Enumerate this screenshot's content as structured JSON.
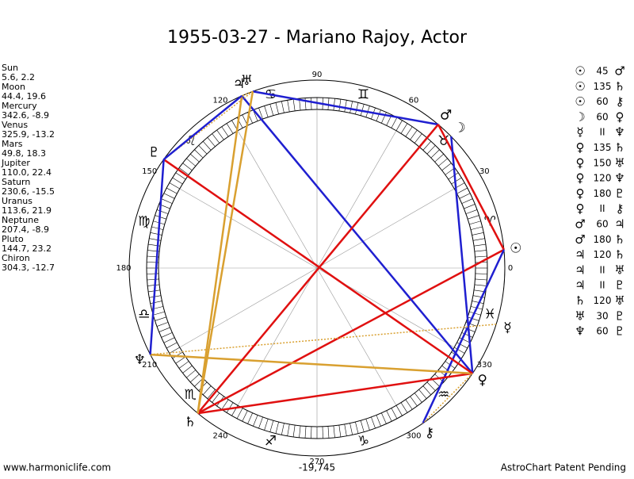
{
  "title": "1955-03-27 - Mariano Rajoy, Actor",
  "planets": [
    {
      "name": "Sun",
      "glyph": "☉",
      "lon": 5.6,
      "label": "5.6, 2.2"
    },
    {
      "name": "Moon",
      "glyph": "☽",
      "lon": 44.4,
      "label": "44.4, 19.6"
    },
    {
      "name": "Mercury",
      "glyph": "☿",
      "lon": 342.6,
      "label": "342.6, -8.9"
    },
    {
      "name": "Venus",
      "glyph": "♀",
      "lon": 325.9,
      "label": "325.9, -13.2"
    },
    {
      "name": "Mars",
      "glyph": "♂",
      "lon": 49.8,
      "label": "49.8, 18.3"
    },
    {
      "name": "Jupiter",
      "glyph": "♃",
      "lon": 110.0,
      "label": "110.0, 22.4"
    },
    {
      "name": "Saturn",
      "glyph": "♄",
      "lon": 230.6,
      "label": "230.6, -15.5"
    },
    {
      "name": "Uranus",
      "glyph": "♅",
      "lon": 113.6,
      "label": "113.6, 21.9"
    },
    {
      "name": "Neptune",
      "glyph": "♆",
      "lon": 207.4,
      "label": "207.4, -8.9"
    },
    {
      "name": "Pluto",
      "glyph": "♇",
      "lon": 144.7,
      "label": "144.7, 23.2"
    },
    {
      "name": "Chiron",
      "glyph": "⚷",
      "lon": 304.3,
      "label": "304.3, -12.7"
    }
  ],
  "aspects": [
    {
      "from": 0,
      "aspect": 45,
      "to": 4
    },
    {
      "from": 0,
      "aspect": 135,
      "to": 6
    },
    {
      "from": 0,
      "aspect": 60,
      "to": 10
    },
    {
      "from": 1,
      "aspect": 60,
      "to": 3
    },
    {
      "from": 2,
      "aspect": "II",
      "to": 8
    },
    {
      "from": 3,
      "aspect": 135,
      "to": 6
    },
    {
      "from": 3,
      "aspect": 150,
      "to": 7
    },
    {
      "from": 3,
      "aspect": 120,
      "to": 8
    },
    {
      "from": 3,
      "aspect": 180,
      "to": 9
    },
    {
      "from": 3,
      "aspect": "II",
      "to": 10
    },
    {
      "from": 4,
      "aspect": 60,
      "to": 5
    },
    {
      "from": 4,
      "aspect": 180,
      "to": 6
    },
    {
      "from": 5,
      "aspect": 120,
      "to": 6
    },
    {
      "from": 5,
      "aspect": "II",
      "to": 7
    },
    {
      "from": 5,
      "aspect": "II",
      "to": 9
    },
    {
      "from": 6,
      "aspect": 120,
      "to": 7
    },
    {
      "from": 7,
      "aspect": 30,
      "to": 9
    },
    {
      "from": 8,
      "aspect": 60,
      "to": 9
    }
  ],
  "aspect_colors": {
    "30": "#1f1fd0",
    "45": "#e01010",
    "60": "#1f1fd0",
    "120": "#d9a030",
    "135": "#e01010",
    "150": "#1f1fd0",
    "180": "#e01010",
    "II": "#d9a030"
  },
  "signs": [
    "♈",
    "♉",
    "♊",
    "♋",
    "♌",
    "♍",
    "♎",
    "♏",
    "♐",
    "♑",
    "♒",
    "♓"
  ],
  "degree_labels": [
    0,
    30,
    60,
    90,
    120,
    150,
    180,
    210,
    240,
    270,
    300,
    330
  ],
  "footer": {
    "left": "www.harmoniclife.com",
    "center": "-19,745",
    "right": "AstroChart Patent Pending"
  }
}
